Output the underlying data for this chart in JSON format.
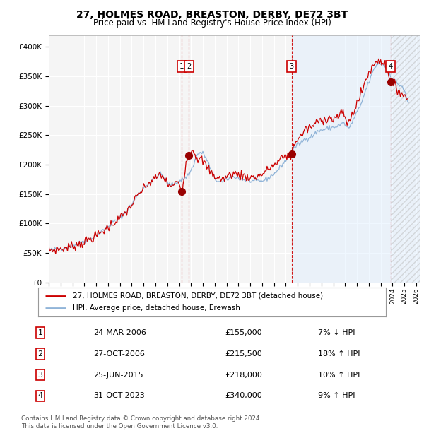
{
  "title": "27, HOLMES ROAD, BREASTON, DERBY, DE72 3BT",
  "subtitle": "Price paid vs. HM Land Registry's House Price Index (HPI)",
  "ylim": [
    0,
    420000
  ],
  "yticks": [
    0,
    50000,
    100000,
    150000,
    200000,
    250000,
    300000,
    350000,
    400000
  ],
  "ytick_labels": [
    "£0",
    "£50K",
    "£100K",
    "£150K",
    "£200K",
    "£250K",
    "£300K",
    "£350K",
    "£400K"
  ],
  "background_color": "#ffffff",
  "plot_bg_color": "#f5f5f5",
  "grid_color": "#ffffff",
  "hpi_line_color": "#90b4d8",
  "price_line_color": "#cc0000",
  "sale_marker_color": "#990000",
  "transactions": [
    {
      "num": 1,
      "date": "24-MAR-2006",
      "price": 155000,
      "pct": "7% ↓ HPI",
      "x": 2006.22
    },
    {
      "num": 2,
      "date": "27-OCT-2006",
      "price": 215500,
      "pct": "18% ↑ HPI",
      "x": 2006.82
    },
    {
      "num": 3,
      "date": "25-JUN-2015",
      "price": 218000,
      "pct": "10% ↑ HPI",
      "x": 2015.49
    },
    {
      "num": 4,
      "date": "31-OCT-2023",
      "price": 340000,
      "pct": "9% ↑ HPI",
      "x": 2023.84
    }
  ],
  "vline_color": "#cc0000",
  "shade_color": "#ddeeff",
  "shade_start_x": 2015.49,
  "legend_label_price": "27, HOLMES ROAD, BREASTON, DERBY, DE72 3BT (detached house)",
  "legend_label_hpi": "HPI: Average price, detached house, Erewash",
  "footer": "Contains HM Land Registry data © Crown copyright and database right 2024.\nThis data is licensed under the Open Government Licence v3.0.",
  "xtick_years": [
    1995,
    1996,
    1997,
    1998,
    1999,
    2000,
    2001,
    2002,
    2003,
    2004,
    2005,
    2006,
    2007,
    2008,
    2009,
    2010,
    2011,
    2012,
    2013,
    2014,
    2015,
    2016,
    2017,
    2018,
    2019,
    2020,
    2021,
    2022,
    2023,
    2024,
    2025,
    2026
  ]
}
